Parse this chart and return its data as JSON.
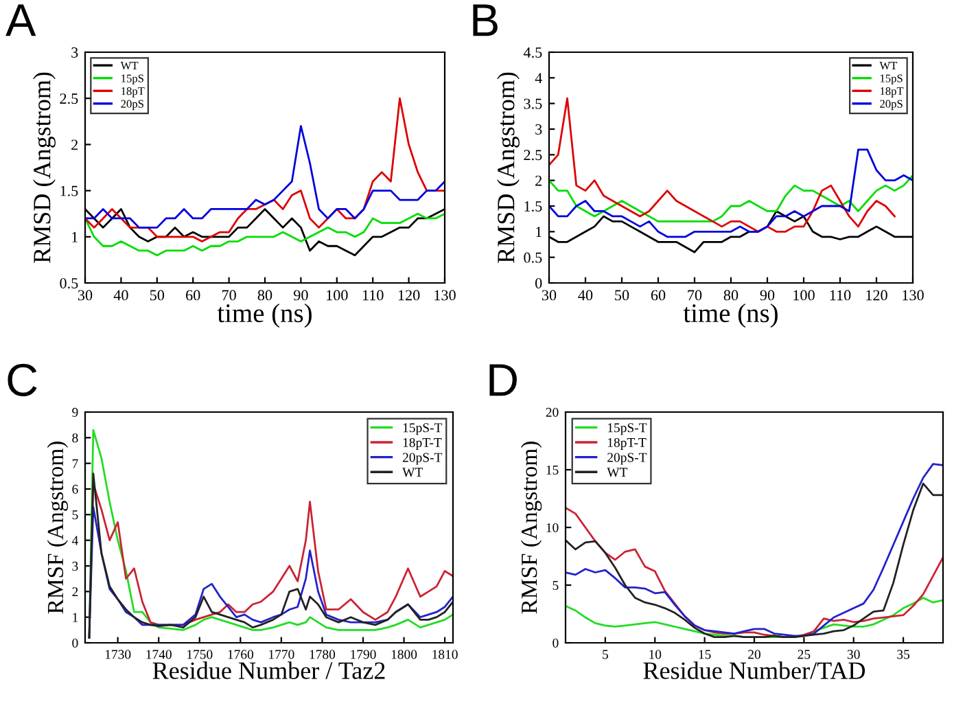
{
  "chart_data": [
    {
      "type": "line",
      "title": "A",
      "xlabel": "time (ns)",
      "ylabel": "RMSD (Angstrom)",
      "xlim": [
        30,
        130
      ],
      "ylim": [
        0.5,
        3
      ],
      "xticks": [
        30,
        40,
        50,
        60,
        70,
        80,
        90,
        100,
        110,
        120,
        130
      ],
      "yticks": [
        0.5,
        1,
        1.5,
        2,
        2.5,
        3
      ],
      "legend": "top left",
      "grid": false,
      "x": [
        30,
        32.5,
        35,
        37.5,
        40,
        42.5,
        45,
        47.5,
        50,
        52.5,
        55,
        57.5,
        60,
        62.5,
        65,
        67.5,
        70,
        72.5,
        75,
        77.5,
        80,
        82.5,
        85,
        87.5,
        90,
        92.5,
        95,
        97.5,
        100,
        102.5,
        105,
        107.5,
        110,
        112.5,
        115,
        117.5,
        120,
        122.5,
        125,
        127.5,
        130
      ],
      "series": [
        {
          "name": "WT",
          "color": "#000000",
          "values": [
            1.3,
            1.2,
            1.1,
            1.2,
            1.3,
            1.1,
            1.0,
            0.95,
            1.0,
            1.0,
            1.1,
            1.0,
            1.05,
            1.0,
            1.0,
            1.0,
            1.0,
            1.1,
            1.1,
            1.2,
            1.3,
            1.2,
            1.1,
            1.2,
            1.1,
            0.85,
            0.95,
            0.9,
            0.9,
            0.85,
            0.8,
            0.9,
            1.0,
            1.0,
            1.05,
            1.1,
            1.1,
            1.2,
            1.2,
            1.25,
            1.3
          ]
        },
        {
          "name": "15pS",
          "color": "#00dd00",
          "values": [
            1.2,
            1.0,
            0.9,
            0.9,
            0.95,
            0.9,
            0.85,
            0.85,
            0.8,
            0.85,
            0.85,
            0.85,
            0.9,
            0.85,
            0.9,
            0.9,
            0.95,
            0.95,
            1.0,
            1.0,
            1.0,
            1.0,
            1.05,
            1.0,
            0.95,
            1.0,
            1.05,
            1.1,
            1.05,
            1.05,
            1.0,
            1.05,
            1.2,
            1.15,
            1.15,
            1.15,
            1.2,
            1.25,
            1.2,
            1.2,
            1.25
          ]
        },
        {
          "name": "18pT",
          "color": "#dd0000",
          "values": [
            1.2,
            1.1,
            1.2,
            1.3,
            1.2,
            1.1,
            1.1,
            1.1,
            1.0,
            1.0,
            1.0,
            1.0,
            1.0,
            0.95,
            1.0,
            1.05,
            1.05,
            1.2,
            1.3,
            1.3,
            1.35,
            1.4,
            1.3,
            1.45,
            1.5,
            1.2,
            1.1,
            1.2,
            1.3,
            1.2,
            1.2,
            1.3,
            1.6,
            1.7,
            1.6,
            2.5,
            2.0,
            1.7,
            1.5,
            1.5,
            1.5
          ]
        },
        {
          "name": "20pS",
          "color": "#0000dd",
          "values": [
            1.2,
            1.2,
            1.3,
            1.2,
            1.2,
            1.2,
            1.1,
            1.1,
            1.1,
            1.2,
            1.2,
            1.3,
            1.2,
            1.2,
            1.3,
            1.3,
            1.3,
            1.3,
            1.3,
            1.4,
            1.35,
            1.4,
            1.5,
            1.6,
            2.2,
            1.8,
            1.3,
            1.2,
            1.3,
            1.3,
            1.2,
            1.3,
            1.5,
            1.5,
            1.5,
            1.4,
            1.4,
            1.4,
            1.5,
            1.5,
            1.6
          ]
        }
      ]
    },
    {
      "type": "line",
      "title": "B",
      "xlabel": "time (ns)",
      "ylabel": "RMSD (Angstrom)",
      "xlim": [
        30,
        130
      ],
      "ylim": [
        0,
        4.5
      ],
      "xticks": [
        30,
        40,
        50,
        60,
        70,
        80,
        90,
        100,
        110,
        120,
        130
      ],
      "yticks": [
        0,
        0.5,
        1,
        1.5,
        2,
        2.5,
        3,
        3.5,
        4,
        4.5
      ],
      "legend": "top right",
      "grid": false,
      "x": [
        30,
        32.5,
        35,
        37.5,
        40,
        42.5,
        45,
        47.5,
        50,
        52.5,
        55,
        57.5,
        60,
        62.5,
        65,
        67.5,
        70,
        72.5,
        75,
        77.5,
        80,
        82.5,
        85,
        87.5,
        90,
        92.5,
        95,
        97.5,
        100,
        102.5,
        105,
        107.5,
        110,
        112.5,
        115,
        117.5,
        120,
        122.5,
        125,
        127.5,
        130
      ],
      "series": [
        {
          "name": "WT",
          "color": "#000000",
          "values": [
            0.9,
            0.8,
            0.8,
            0.9,
            1.0,
            1.1,
            1.3,
            1.2,
            1.2,
            1.1,
            1.0,
            0.9,
            0.8,
            0.8,
            0.8,
            0.7,
            0.6,
            0.8,
            0.8,
            0.8,
            0.9,
            0.9,
            1.0,
            1.0,
            1.1,
            1.4,
            1.3,
            1.2,
            1.3,
            1.0,
            0.9,
            0.9,
            0.85,
            0.9,
            0.9,
            1.0,
            1.1,
            1.0,
            0.9,
            0.9,
            0.9
          ]
        },
        {
          "name": "15pS",
          "color": "#00dd00",
          "values": [
            2.0,
            1.8,
            1.8,
            1.5,
            1.4,
            1.3,
            1.4,
            1.5,
            1.6,
            1.5,
            1.4,
            1.3,
            1.2,
            1.2,
            1.2,
            1.2,
            1.2,
            1.2,
            1.2,
            1.3,
            1.5,
            1.5,
            1.6,
            1.5,
            1.4,
            1.4,
            1.7,
            1.9,
            1.8,
            1.8,
            1.7,
            1.6,
            1.5,
            1.6,
            1.4,
            1.6,
            1.8,
            1.9,
            1.8,
            1.9,
            2.1
          ]
        },
        {
          "name": "18pT",
          "color": "#dd0000",
          "values": [
            2.3,
            2.5,
            3.6,
            1.9,
            1.8,
            2.0,
            1.7,
            1.6,
            1.5,
            1.4,
            1.3,
            1.4,
            1.6,
            1.8,
            1.6,
            1.5,
            1.4,
            1.3,
            1.2,
            1.1,
            1.2,
            1.2,
            1.1,
            1.0,
            1.1,
            1.0,
            1.0,
            1.1,
            1.1,
            1.4,
            1.8,
            1.9,
            1.6,
            1.3,
            1.1,
            1.4,
            1.6,
            1.5,
            1.3,
            null,
            null
          ]
        },
        {
          "name": "20pS",
          "color": "#0000dd",
          "values": [
            1.5,
            1.3,
            1.3,
            1.5,
            1.6,
            1.4,
            1.4,
            1.3,
            1.3,
            1.2,
            1.1,
            1.2,
            1.0,
            0.9,
            0.9,
            0.9,
            1.0,
            1.0,
            1.0,
            1.0,
            1.0,
            1.1,
            1.0,
            1.0,
            1.1,
            1.3,
            1.3,
            1.4,
            1.3,
            1.4,
            1.5,
            1.5,
            1.5,
            1.4,
            2.6,
            2.6,
            2.2,
            2.0,
            2.0,
            2.1,
            2.0
          ]
        }
      ]
    },
    {
      "type": "line",
      "title": "C",
      "xlabel": "Residue Number / Taz2",
      "ylabel": "RMSF (Angstrom)",
      "xlim": [
        1722,
        1812
      ],
      "ylim": [
        0,
        9
      ],
      "xticks": [
        1730,
        1740,
        1750,
        1760,
        1770,
        1780,
        1790,
        1800,
        1810
      ],
      "yticks": [
        0,
        1,
        2,
        3,
        4,
        5,
        6,
        7,
        8,
        9
      ],
      "legend": "top right",
      "grid": false,
      "x": [
        1723,
        1724,
        1726,
        1728,
        1730,
        1732,
        1734,
        1736,
        1738,
        1740,
        1743,
        1746,
        1749,
        1751,
        1753,
        1755,
        1757,
        1759,
        1761,
        1763,
        1765,
        1768,
        1770,
        1772,
        1774,
        1776,
        1777,
        1779,
        1781,
        1784,
        1787,
        1790,
        1793,
        1796,
        1798,
        1801,
        1804,
        1806,
        1808,
        1810,
        1812
      ],
      "series": [
        {
          "name": "15pS-T",
          "color": "#22dd22",
          "values": [
            0.2,
            8.3,
            7.2,
            5.5,
            4.0,
            2.8,
            1.2,
            1.2,
            0.8,
            0.6,
            0.55,
            0.5,
            0.7,
            0.9,
            1.0,
            0.9,
            0.8,
            0.7,
            0.6,
            0.5,
            0.5,
            0.6,
            0.7,
            0.8,
            0.7,
            0.8,
            1.0,
            0.8,
            0.6,
            0.5,
            0.5,
            0.5,
            0.5,
            0.6,
            0.7,
            0.9,
            0.6,
            0.7,
            0.8,
            0.9,
            1.1
          ]
        },
        {
          "name": "18pT-T",
          "color": "#cc2233",
          "values": [
            0.2,
            6.2,
            5.2,
            4.0,
            4.7,
            2.5,
            2.9,
            1.6,
            0.8,
            0.7,
            0.7,
            0.7,
            0.9,
            1.0,
            1.1,
            1.2,
            1.5,
            1.2,
            1.2,
            1.5,
            1.6,
            2.0,
            2.5,
            3.0,
            2.4,
            4.0,
            5.5,
            2.8,
            1.3,
            1.3,
            1.7,
            1.2,
            0.9,
            1.2,
            1.8,
            2.9,
            1.8,
            2.0,
            2.2,
            2.8,
            2.6
          ]
        },
        {
          "name": "20pS-T",
          "color": "#2222cc",
          "values": [
            0.2,
            5.3,
            3.5,
            2.1,
            1.7,
            1.2,
            1.0,
            0.7,
            0.7,
            0.7,
            0.7,
            0.7,
            1.1,
            2.1,
            2.3,
            1.8,
            1.4,
            1.0,
            1.1,
            0.9,
            0.8,
            1.0,
            1.1,
            1.3,
            1.4,
            2.5,
            3.6,
            2.0,
            1.1,
            0.9,
            0.8,
            0.8,
            0.8,
            0.9,
            1.2,
            1.5,
            1.0,
            1.1,
            1.2,
            1.4,
            1.8
          ]
        },
        {
          "name": "WT",
          "color": "#222222",
          "values": [
            0.2,
            6.6,
            3.5,
            2.2,
            1.7,
            1.3,
            1.0,
            0.8,
            0.7,
            0.65,
            0.7,
            0.6,
            1.0,
            1.8,
            1.2,
            1.1,
            1.0,
            0.9,
            0.8,
            0.6,
            0.7,
            0.9,
            1.1,
            2.0,
            2.1,
            1.3,
            1.8,
            1.5,
            1.0,
            0.8,
            1.0,
            0.8,
            0.7,
            0.9,
            1.2,
            1.5,
            0.9,
            0.9,
            1.0,
            1.2,
            1.6
          ]
        }
      ]
    },
    {
      "type": "line",
      "title": "D",
      "xlabel": "Residue Number/TAD",
      "ylabel": "RMSF (Angstrom)",
      "xlim": [
        1,
        39
      ],
      "ylim": [
        0,
        20
      ],
      "xticks": [
        5,
        10,
        15,
        20,
        25,
        30,
        35
      ],
      "yticks": [
        0,
        5,
        10,
        15,
        20
      ],
      "legend": "top left",
      "grid": false,
      "x": [
        1,
        2,
        3,
        4,
        5,
        6,
        7,
        8,
        9,
        10,
        11,
        12,
        13,
        14,
        15,
        16,
        17,
        18,
        19,
        20,
        21,
        22,
        23,
        24,
        25,
        26,
        27,
        28,
        29,
        30,
        31,
        32,
        33,
        34,
        35,
        36,
        37,
        38,
        39
      ],
      "series": [
        {
          "name": "15pS-T",
          "color": "#22dd22",
          "values": [
            3.2,
            2.8,
            2.2,
            1.7,
            1.5,
            1.4,
            1.5,
            1.6,
            1.7,
            1.8,
            1.6,
            1.4,
            1.2,
            1.0,
            0.8,
            0.7,
            0.6,
            0.6,
            0.5,
            0.5,
            0.5,
            0.5,
            0.5,
            0.5,
            0.6,
            1.0,
            1.3,
            1.6,
            1.5,
            1.4,
            1.4,
            1.6,
            2.0,
            2.4,
            3.0,
            3.4,
            3.9,
            3.5,
            3.7
          ]
        },
        {
          "name": "18pT-T",
          "color": "#cc2233",
          "values": [
            11.7,
            11.2,
            10.0,
            8.8,
            7.8,
            7.2,
            7.9,
            8.1,
            6.6,
            6.2,
            4.5,
            3.4,
            2.3,
            1.5,
            1.1,
            0.9,
            0.8,
            0.8,
            0.9,
            0.9,
            0.7,
            0.6,
            0.5,
            0.5,
            0.7,
            1.0,
            2.1,
            1.9,
            2.0,
            1.8,
            1.9,
            2.1,
            2.2,
            2.3,
            2.4,
            3.2,
            4.2,
            5.8,
            7.4
          ]
        },
        {
          "name": "20pS-T",
          "color": "#2222cc",
          "values": [
            6.1,
            5.9,
            6.4,
            6.1,
            6.3,
            5.6,
            4.8,
            4.8,
            4.7,
            4.3,
            4.4,
            3.3,
            2.3,
            1.5,
            1.1,
            1.0,
            0.9,
            0.8,
            1.0,
            1.2,
            1.2,
            0.8,
            0.7,
            0.6,
            0.6,
            0.8,
            1.5,
            2.2,
            2.6,
            3.0,
            3.4,
            4.6,
            6.5,
            8.5,
            10.5,
            12.5,
            14.3,
            15.5,
            15.4
          ]
        },
        {
          "name": "WT",
          "color": "#222222",
          "values": [
            8.9,
            8.1,
            8.7,
            8.8,
            7.8,
            6.5,
            5.0,
            3.9,
            3.5,
            3.3,
            3.0,
            2.6,
            2.0,
            1.3,
            0.8,
            0.5,
            0.5,
            0.6,
            0.5,
            0.5,
            0.5,
            0.6,
            0.5,
            0.5,
            0.6,
            0.7,
            0.8,
            1.0,
            1.1,
            1.5,
            2.1,
            2.7,
            2.8,
            5.2,
            8.5,
            11.5,
            13.8,
            12.8,
            12.8
          ]
        }
      ]
    }
  ]
}
